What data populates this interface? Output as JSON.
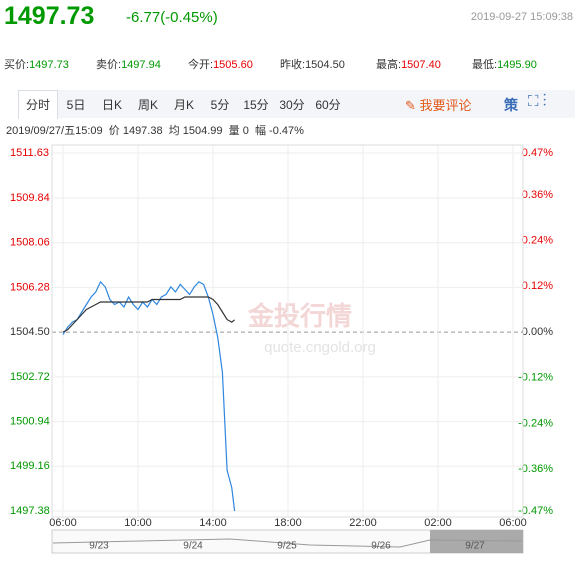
{
  "header": {
    "price": "1497.73",
    "change": "-6.77(-0.45%)",
    "datetime": "2019-09-27 15:09:38"
  },
  "quotes": [
    {
      "label": "买价:",
      "value": "1497.73"
    },
    {
      "label": "卖价:",
      "value": "1497.94"
    },
    {
      "label": "今开:",
      "value": "1505.60"
    },
    {
      "label": "昨收:",
      "value": "1504.50"
    },
    {
      "label": "最高:",
      "value": "1507.40"
    },
    {
      "label": "最低:",
      "value": "1495.90"
    }
  ],
  "tabs": [
    "分时",
    "5日",
    "日K",
    "周K",
    "月K",
    "5分",
    "15分",
    "30分",
    "60分"
  ],
  "comment": "我要评论",
  "strategy": "策",
  "info": {
    "date": "2019/09/27/五15:09",
    "price_label": "价",
    "price": "1497.38",
    "avg_label": "均",
    "avg": "1504.99",
    "vol_label": "量",
    "vol": "0",
    "range_label": "幅",
    "range": "-0.47%"
  },
  "watermark": {
    "title": "金投行情",
    "url": "quote.cngold.org"
  },
  "navigator": {
    "dates": [
      "9/23",
      "9/24",
      "9/25",
      "9/26",
      "9/27"
    ]
  },
  "chart_data": {
    "type": "line",
    "x": [
      "06:00",
      "06:15",
      "06:30",
      "06:45",
      "07:00",
      "07:15",
      "07:30",
      "07:45",
      "08:00",
      "08:15",
      "08:30",
      "08:45",
      "09:00",
      "09:15",
      "09:30",
      "09:45",
      "10:00",
      "10:15",
      "10:30",
      "10:45",
      "11:00",
      "11:15",
      "11:30",
      "11:45",
      "12:00",
      "12:15",
      "12:30",
      "12:45",
      "13:00",
      "13:15",
      "13:30",
      "13:45",
      "14:00",
      "14:15",
      "14:30",
      "14:45",
      "15:00",
      "15:09"
    ],
    "series": [
      {
        "color": "#2e86de",
        "values": [
          1504.4,
          1504.7,
          1504.9,
          1505.0,
          1505.3,
          1505.6,
          1505.9,
          1506.1,
          1506.5,
          1506.3,
          1505.8,
          1505.6,
          1505.7,
          1505.5,
          1505.9,
          1505.6,
          1505.4,
          1505.7,
          1505.5,
          1505.8,
          1505.6,
          1505.9,
          1506.0,
          1506.3,
          1506.1,
          1506.4,
          1506.2,
          1506.0,
          1506.3,
          1506.5,
          1506.4,
          1505.9,
          1505.2,
          1504.3,
          1502.9,
          1499.0,
          1498.3,
          1497.38
        ]
      },
      {
        "color": "#333333",
        "values": [
          1504.5,
          1504.6,
          1504.8,
          1505.0,
          1505.2,
          1505.4,
          1505.5,
          1505.6,
          1505.7,
          1505.7,
          1505.7,
          1505.7,
          1505.7,
          1505.7,
          1505.7,
          1505.7,
          1505.7,
          1505.7,
          1505.7,
          1505.8,
          1505.8,
          1505.8,
          1505.8,
          1505.8,
          1505.8,
          1505.8,
          1505.9,
          1505.9,
          1505.9,
          1505.9,
          1505.9,
          1505.9,
          1505.8,
          1505.6,
          1505.3,
          1505.0,
          1504.9,
          1504.99
        ]
      }
    ],
    "ylim": [
      1497.38,
      1511.63
    ],
    "yticks": [
      1511.63,
      1509.84,
      1508.06,
      1506.28,
      {
        "value": 1504.5,
        "label": "1504.50"
      },
      1502.72,
      1500.94,
      1499.16,
      1497.38
    ],
    "y2lim": [
      -0.47,
      0.47
    ],
    "y2ticks": [
      {
        "value": 0.47,
        "label": "0.47%"
      },
      {
        "value": 0.36,
        "label": "0.36%"
      },
      {
        "value": 0.24,
        "label": "0.24%"
      },
      {
        "value": 0.12,
        "label": "0.12%"
      },
      {
        "value": 0,
        "label": "0.00%"
      },
      {
        "value": -0.12,
        "label": "-0.12%"
      },
      {
        "value": -0.24,
        "label": "-0.24%"
      },
      {
        "value": -0.36,
        "label": "-0.36%"
      },
      {
        "value": -0.47,
        "label": "-0.47%"
      }
    ],
    "xticks": [
      "06:00",
      "10:00",
      "14:00",
      "18:00",
      "22:00",
      "02:00",
      "06:00"
    ],
    "grid": true,
    "up_color": "#e60000",
    "down_color": "#009900"
  }
}
